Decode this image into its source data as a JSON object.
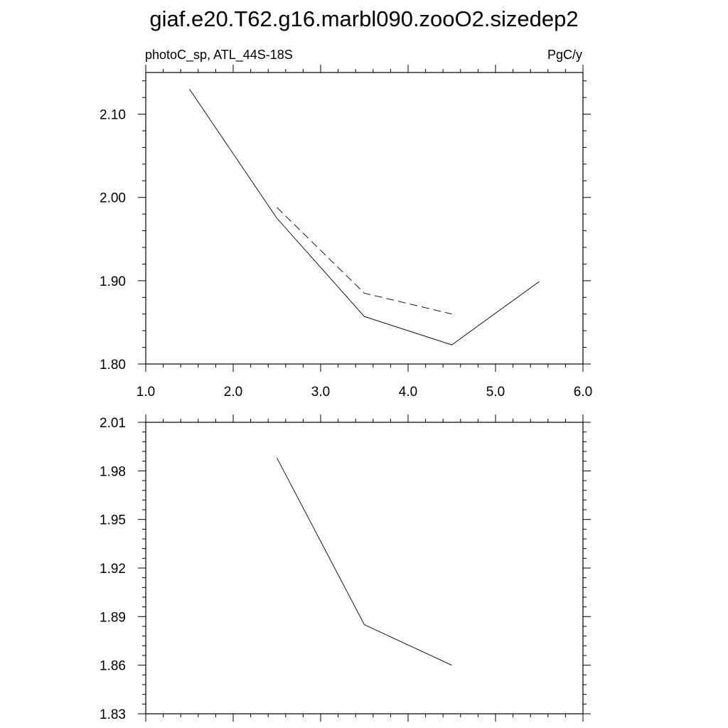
{
  "title": "giaf.e20.T62.g16.marbl090.zooO2.sizedep2",
  "chart_data": [
    {
      "type": "line",
      "left_label": "photoC_sp, ATL_44S-18S",
      "right_label": "PgC/y",
      "xlim": [
        1.0,
        6.0
      ],
      "ylim": [
        1.8,
        2.15
      ],
      "x_ticks": [
        1.0,
        2.0,
        3.0,
        4.0,
        5.0,
        6.0
      ],
      "x_tick_labels": [
        "1.0",
        "2.0",
        "3.0",
        "4.0",
        "5.0",
        "6.0"
      ],
      "y_ticks": [
        1.8,
        1.9,
        2.0,
        2.1
      ],
      "y_tick_labels": [
        "1.80",
        "1.90",
        "2.00",
        "2.10"
      ],
      "series": [
        {
          "style": "solid",
          "x": [
            1.5,
            2.5,
            3.5,
            4.5,
            5.5
          ],
          "y": [
            2.13,
            1.975,
            1.857,
            1.823,
            1.899
          ]
        },
        {
          "style": "dashed",
          "x": [
            2.5,
            3.5,
            4.5
          ],
          "y": [
            1.988,
            1.885,
            1.86
          ]
        }
      ],
      "grid": false
    },
    {
      "type": "line",
      "xlim": [
        1.0,
        6.0
      ],
      "ylim": [
        1.83,
        2.01
      ],
      "x_ticks": [
        1.0,
        2.0,
        3.0,
        4.0,
        5.0,
        6.0
      ],
      "y_ticks": [
        1.83,
        1.86,
        1.89,
        1.92,
        1.95,
        1.98,
        2.01
      ],
      "y_tick_labels": [
        "1.83",
        "1.86",
        "1.89",
        "1.92",
        "1.95",
        "1.98",
        "2.01"
      ],
      "series": [
        {
          "style": "solid",
          "x": [
            2.5,
            3.5,
            4.5
          ],
          "y": [
            1.988,
            1.885,
            1.86
          ]
        }
      ],
      "grid": false
    }
  ]
}
